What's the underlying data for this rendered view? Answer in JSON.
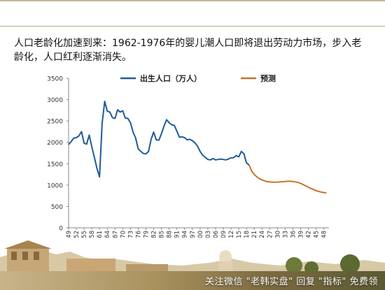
{
  "headline": "人口老龄化加速到来：1962-1976年的婴儿潮人口即将退出劳动力市场，步入老龄化，人口红利逐渐消失。",
  "footer": {
    "caption": "关注微信 \"老韩实盘\" 回复 \"指标\" 免费领"
  },
  "colors": {
    "accent_line": "#b9a88a"
  },
  "chart_data": {
    "type": "line",
    "title": "",
    "xlabel": "",
    "ylabel": "",
    "ylim": [
      0,
      3500
    ],
    "yticks": [
      0,
      500,
      1000,
      1500,
      2000,
      2500,
      3000,
      3500
    ],
    "xlim": [
      1949,
      2050
    ],
    "xticks": [
      1949,
      1952,
      1955,
      1958,
      1961,
      1964,
      1967,
      1970,
      1973,
      1976,
      1979,
      1982,
      1985,
      1988,
      1991,
      1994,
      1997,
      2000,
      2003,
      2006,
      2009,
      2012,
      2015,
      2018,
      2021,
      2024,
      2027,
      2030,
      2033,
      2036,
      2039,
      2042,
      2045,
      2048
    ],
    "grid": false,
    "legend": "top",
    "series": [
      {
        "name": "出生人口（万人）",
        "color": "#1f5c99",
        "points": [
          [
            1949,
            1950
          ],
          [
            1950,
            2020
          ],
          [
            1951,
            2100
          ],
          [
            1952,
            2110
          ],
          [
            1953,
            2150
          ],
          [
            1954,
            2250
          ],
          [
            1955,
            1980
          ],
          [
            1956,
            1960
          ],
          [
            1957,
            2170
          ],
          [
            1958,
            1900
          ],
          [
            1959,
            1650
          ],
          [
            1960,
            1390
          ],
          [
            1961,
            1190
          ],
          [
            1962,
            2450
          ],
          [
            1963,
            2960
          ],
          [
            1964,
            2730
          ],
          [
            1965,
            2710
          ],
          [
            1966,
            2580
          ],
          [
            1967,
            2560
          ],
          [
            1968,
            2760
          ],
          [
            1969,
            2710
          ],
          [
            1970,
            2740
          ],
          [
            1971,
            2570
          ],
          [
            1972,
            2560
          ],
          [
            1973,
            2460
          ],
          [
            1974,
            2240
          ],
          [
            1975,
            2100
          ],
          [
            1976,
            1850
          ],
          [
            1977,
            1790
          ],
          [
            1978,
            1740
          ],
          [
            1979,
            1730
          ],
          [
            1980,
            1790
          ],
          [
            1981,
            2070
          ],
          [
            1982,
            2240
          ],
          [
            1983,
            2060
          ],
          [
            1984,
            2050
          ],
          [
            1985,
            2200
          ],
          [
            1986,
            2380
          ],
          [
            1987,
            2530
          ],
          [
            1988,
            2460
          ],
          [
            1989,
            2410
          ],
          [
            1990,
            2400
          ],
          [
            1991,
            2260
          ],
          [
            1992,
            2120
          ],
          [
            1993,
            2130
          ],
          [
            1994,
            2110
          ],
          [
            1995,
            2060
          ],
          [
            1996,
            2070
          ],
          [
            1997,
            2040
          ],
          [
            1998,
            1990
          ],
          [
            1999,
            1910
          ],
          [
            2000,
            1790
          ],
          [
            2001,
            1700
          ],
          [
            2002,
            1650
          ],
          [
            2003,
            1600
          ],
          [
            2004,
            1590
          ],
          [
            2005,
            1620
          ],
          [
            2006,
            1590
          ],
          [
            2007,
            1600
          ],
          [
            2008,
            1610
          ],
          [
            2009,
            1600
          ],
          [
            2010,
            1590
          ],
          [
            2011,
            1610
          ],
          [
            2012,
            1640
          ],
          [
            2013,
            1640
          ],
          [
            2014,
            1690
          ],
          [
            2015,
            1660
          ],
          [
            2016,
            1790
          ],
          [
            2017,
            1730
          ],
          [
            2018,
            1520
          ],
          [
            2019,
            1470
          ]
        ]
      },
      {
        "name": "预测",
        "color": "#c8732a",
        "points": [
          [
            2019,
            1470
          ],
          [
            2020,
            1330
          ],
          [
            2021,
            1250
          ],
          [
            2022,
            1190
          ],
          [
            2023,
            1150
          ],
          [
            2024,
            1120
          ],
          [
            2025,
            1100
          ],
          [
            2026,
            1080
          ],
          [
            2027,
            1075
          ],
          [
            2028,
            1070
          ],
          [
            2029,
            1068
          ],
          [
            2030,
            1070
          ],
          [
            2031,
            1075
          ],
          [
            2032,
            1080
          ],
          [
            2033,
            1085
          ],
          [
            2034,
            1090
          ],
          [
            2035,
            1090
          ],
          [
            2036,
            1085
          ],
          [
            2037,
            1075
          ],
          [
            2038,
            1060
          ],
          [
            2039,
            1040
          ],
          [
            2040,
            1010
          ],
          [
            2041,
            980
          ],
          [
            2042,
            950
          ],
          [
            2043,
            920
          ],
          [
            2044,
            895
          ],
          [
            2045,
            870
          ],
          [
            2046,
            850
          ],
          [
            2047,
            835
          ],
          [
            2048,
            825
          ],
          [
            2049,
            820
          ]
        ]
      }
    ]
  }
}
